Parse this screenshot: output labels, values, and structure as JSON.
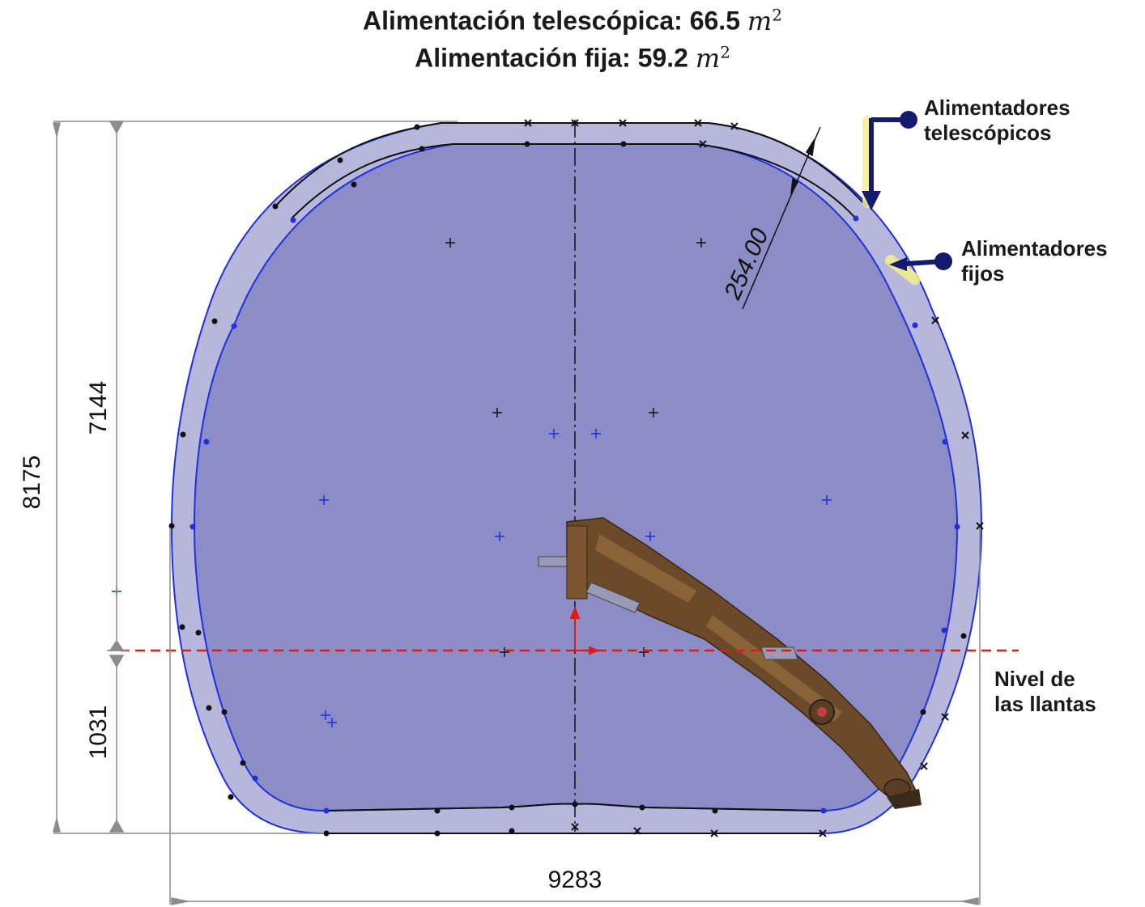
{
  "title": {
    "line1_label": "Alimentación telescópica: 66.5",
    "line2_label": "Alimentación fija: 59.2",
    "unit_base": "m",
    "unit_exp": "2"
  },
  "callouts": {
    "telescopic": {
      "line1": "Alimentadores",
      "line2": "telescópicos"
    },
    "fixed": {
      "line1": "Alimentadores",
      "line2": "fijos"
    },
    "tire_level": {
      "line1": "Nivel de",
      "line2": "las llantas"
    }
  },
  "dimensions": {
    "total_height": "8175",
    "upper_height": "7144",
    "lower_height": "1031",
    "total_width": "9283",
    "offset": "254.00"
  },
  "colors": {
    "outer_area": "#b7b7dc",
    "inner_area": "#8c8cc6",
    "blue_line": "#1f2fe0",
    "arrow_navy": "#141a6e",
    "highlight": "#f3f08a",
    "tire_line": "#e01a1a",
    "dim_gray": "#8c8c8c",
    "boom": "#6b4a2a"
  }
}
